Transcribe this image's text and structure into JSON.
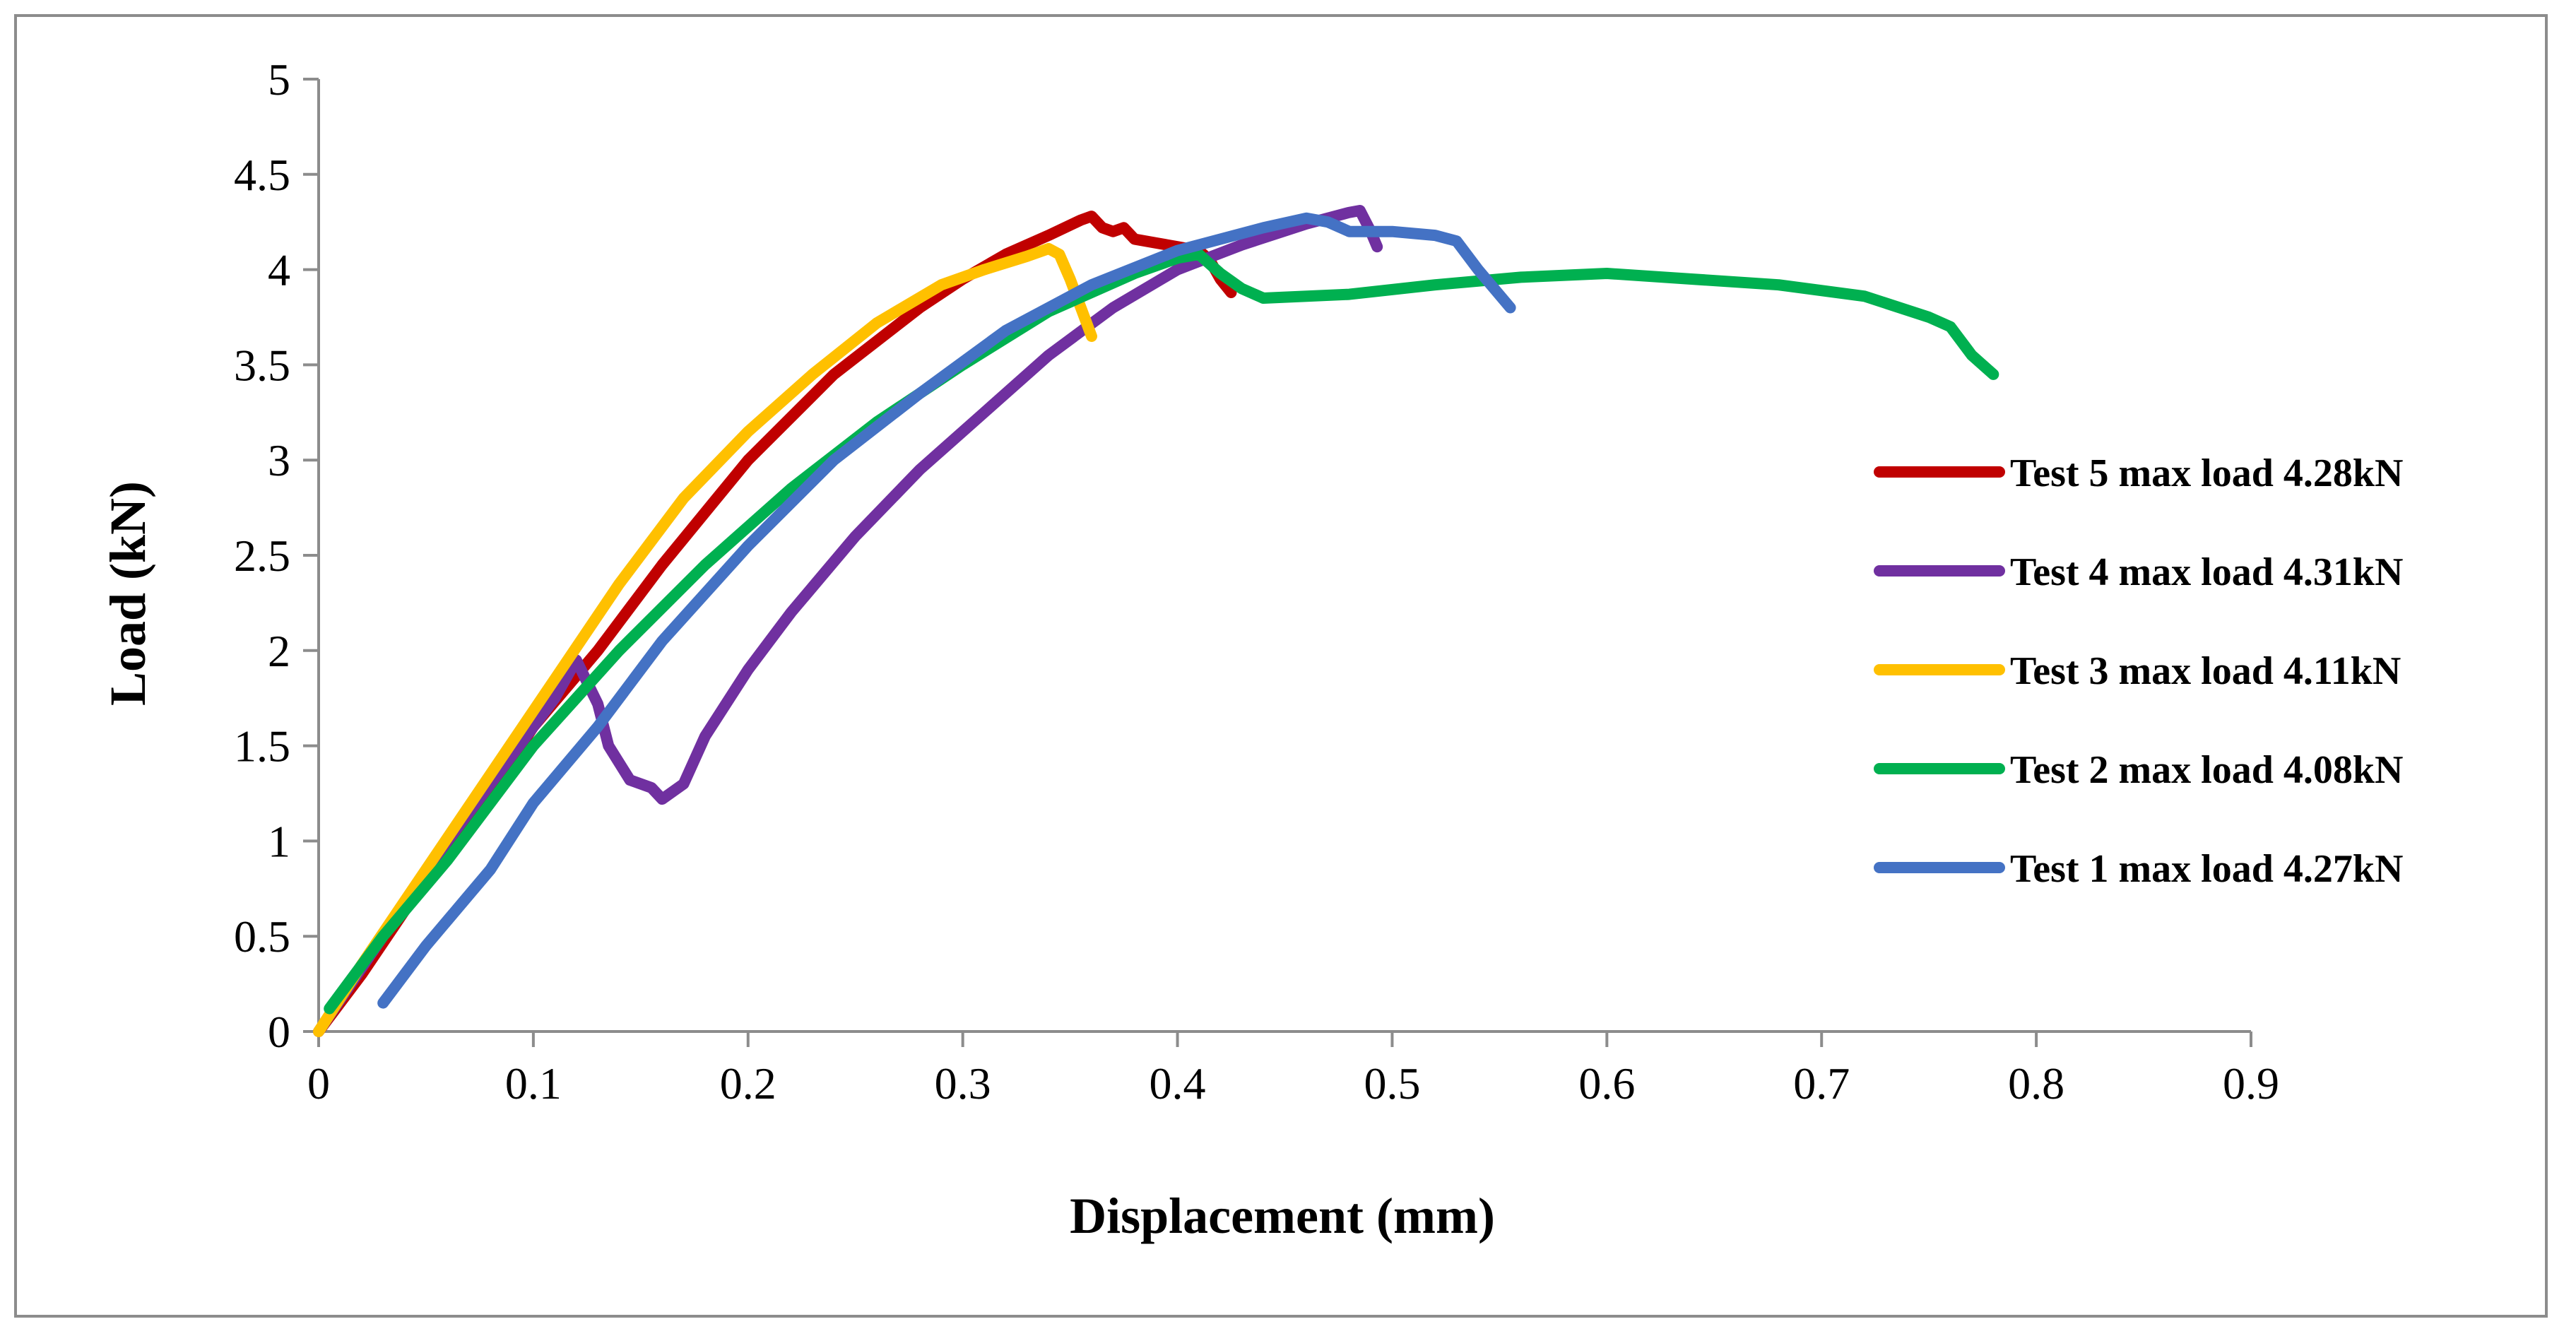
{
  "chart_data": {
    "type": "line",
    "title": "",
    "xlabel": "Displacement (mm)",
    "ylabel": "Load (kN)",
    "xlim": [
      0,
      0.9
    ],
    "ylim": [
      0,
      5
    ],
    "x_ticks": [
      "0",
      "0.1",
      "0.2",
      "0.3",
      "0.4",
      "0.5",
      "0.6",
      "0.7",
      "0.8",
      "0.9"
    ],
    "y_ticks": [
      "0",
      "0.5",
      "1",
      "1.5",
      "2",
      "2.5",
      "3",
      "3.5",
      "4",
      "4.5",
      "5"
    ],
    "grid": false,
    "legend_position": "right",
    "series": [
      {
        "name": "Test 5 max load 4.28kN",
        "color": "#c00000",
        "points": [
          [
            0,
            0
          ],
          [
            0.02,
            0.3
          ],
          [
            0.05,
            0.8
          ],
          [
            0.08,
            1.25
          ],
          [
            0.1,
            1.6
          ],
          [
            0.13,
            2.0
          ],
          [
            0.16,
            2.45
          ],
          [
            0.2,
            3.0
          ],
          [
            0.24,
            3.45
          ],
          [
            0.28,
            3.8
          ],
          [
            0.3,
            3.95
          ],
          [
            0.32,
            4.08
          ],
          [
            0.34,
            4.18
          ],
          [
            0.355,
            4.26
          ],
          [
            0.36,
            4.28
          ],
          [
            0.365,
            4.22
          ],
          [
            0.37,
            4.2
          ],
          [
            0.375,
            4.22
          ],
          [
            0.38,
            4.16
          ],
          [
            0.39,
            4.14
          ],
          [
            0.4,
            4.12
          ],
          [
            0.41,
            4.1
          ],
          [
            0.415,
            4.05
          ],
          [
            0.42,
            3.95
          ],
          [
            0.425,
            3.88
          ]
        ]
      },
      {
        "name": "Test 4 max load 4.31kN",
        "color": "#7030a0",
        "points": [
          [
            0,
            0
          ],
          [
            0.03,
            0.5
          ],
          [
            0.06,
            1.0
          ],
          [
            0.09,
            1.45
          ],
          [
            0.11,
            1.75
          ],
          [
            0.12,
            1.95
          ],
          [
            0.13,
            1.72
          ],
          [
            0.135,
            1.5
          ],
          [
            0.145,
            1.32
          ],
          [
            0.155,
            1.28
          ],
          [
            0.16,
            1.22
          ],
          [
            0.17,
            1.3
          ],
          [
            0.18,
            1.55
          ],
          [
            0.2,
            1.9
          ],
          [
            0.22,
            2.2
          ],
          [
            0.25,
            2.6
          ],
          [
            0.28,
            2.95
          ],
          [
            0.31,
            3.25
          ],
          [
            0.34,
            3.55
          ],
          [
            0.37,
            3.8
          ],
          [
            0.4,
            4.0
          ],
          [
            0.43,
            4.13
          ],
          [
            0.46,
            4.24
          ],
          [
            0.48,
            4.3
          ],
          [
            0.485,
            4.31
          ],
          [
            0.49,
            4.2
          ],
          [
            0.493,
            4.12
          ]
        ]
      },
      {
        "name": "Test 3 max load 4.11kN",
        "color": "#ffc000",
        "points": [
          [
            0,
            0
          ],
          [
            0.02,
            0.35
          ],
          [
            0.05,
            0.85
          ],
          [
            0.08,
            1.35
          ],
          [
            0.11,
            1.85
          ],
          [
            0.14,
            2.35
          ],
          [
            0.17,
            2.8
          ],
          [
            0.2,
            3.15
          ],
          [
            0.23,
            3.45
          ],
          [
            0.26,
            3.72
          ],
          [
            0.29,
            3.92
          ],
          [
            0.31,
            4.0
          ],
          [
            0.33,
            4.07
          ],
          [
            0.34,
            4.11
          ],
          [
            0.345,
            4.08
          ],
          [
            0.35,
            3.95
          ],
          [
            0.355,
            3.8
          ],
          [
            0.36,
            3.65
          ]
        ]
      },
      {
        "name": "Test 2 max load 4.08kN",
        "color": "#00b050",
        "points": [
          [
            0.005,
            0.12
          ],
          [
            0.03,
            0.5
          ],
          [
            0.06,
            0.9
          ],
          [
            0.1,
            1.5
          ],
          [
            0.14,
            2.0
          ],
          [
            0.18,
            2.45
          ],
          [
            0.22,
            2.85
          ],
          [
            0.26,
            3.2
          ],
          [
            0.3,
            3.5
          ],
          [
            0.34,
            3.78
          ],
          [
            0.38,
            3.98
          ],
          [
            0.4,
            4.06
          ],
          [
            0.41,
            4.08
          ],
          [
            0.42,
            3.98
          ],
          [
            0.43,
            3.9
          ],
          [
            0.44,
            3.85
          ],
          [
            0.48,
            3.87
          ],
          [
            0.52,
            3.92
          ],
          [
            0.56,
            3.96
          ],
          [
            0.6,
            3.98
          ],
          [
            0.64,
            3.95
          ],
          [
            0.68,
            3.92
          ],
          [
            0.72,
            3.86
          ],
          [
            0.75,
            3.75
          ],
          [
            0.76,
            3.7
          ],
          [
            0.77,
            3.55
          ],
          [
            0.78,
            3.45
          ]
        ]
      },
      {
        "name": "Test 1 max load 4.27kN",
        "color": "#4472c4",
        "points": [
          [
            0.03,
            0.15
          ],
          [
            0.05,
            0.45
          ],
          [
            0.08,
            0.85
          ],
          [
            0.1,
            1.2
          ],
          [
            0.13,
            1.6
          ],
          [
            0.16,
            2.05
          ],
          [
            0.2,
            2.55
          ],
          [
            0.24,
            3.0
          ],
          [
            0.28,
            3.35
          ],
          [
            0.32,
            3.68
          ],
          [
            0.36,
            3.92
          ],
          [
            0.4,
            4.1
          ],
          [
            0.44,
            4.22
          ],
          [
            0.46,
            4.27
          ],
          [
            0.47,
            4.25
          ],
          [
            0.48,
            4.2
          ],
          [
            0.5,
            4.2
          ],
          [
            0.52,
            4.18
          ],
          [
            0.53,
            4.15
          ],
          [
            0.54,
            4.0
          ],
          [
            0.555,
            3.8
          ]
        ]
      }
    ]
  }
}
